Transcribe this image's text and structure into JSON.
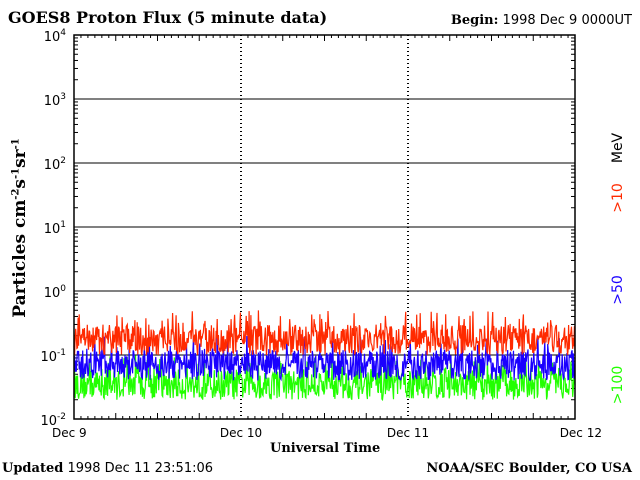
{
  "chart_data": {
    "type": "line",
    "title": "GOES8 Proton Flux (5 minute data)",
    "begin_label": "Begin:",
    "begin_value": "1998 Dec 9 0000UT",
    "xlabel": "Universal Time",
    "ylabel": "Particles cm",
    "ylabel_exp1": "-2",
    "ylabel_mid1": "s",
    "ylabel_exp2": "-1",
    "ylabel_mid2": "sr",
    "ylabel_exp3": "-1",
    "y_scale": "log",
    "ylim": [
      0.01,
      10000
    ],
    "y_ticks": [
      {
        "base": "10",
        "exp": "-2",
        "value": 0.01
      },
      {
        "base": "10",
        "exp": "-1",
        "value": 0.1
      },
      {
        "base": "10",
        "exp": "0",
        "value": 1
      },
      {
        "base": "10",
        "exp": "1",
        "value": 10
      },
      {
        "base": "10",
        "exp": "2",
        "value": 100
      },
      {
        "base": "10",
        "exp": "3",
        "value": 1000
      },
      {
        "base": "10",
        "exp": "4",
        "value": 10000
      }
    ],
    "x_range": [
      "1998-12-09",
      "1998-12-12"
    ],
    "x_ticks": [
      {
        "label": "Dec 9",
        "day": "1998-12-09"
      },
      {
        "label": "Dec 10",
        "day": "1998-12-10"
      },
      {
        "label": "Dec 11",
        "day": "1998-12-11"
      },
      {
        "label": "Dec 12",
        "day": "1998-12-12"
      }
    ],
    "grid": true,
    "energy_unit": "MeV",
    "series": [
      {
        "name": ">10",
        "color": "#ff2a00",
        "typical_range": [
          0.1,
          0.3
        ],
        "peak": 0.5
      },
      {
        "name": ">50",
        "color": "#1a00ff",
        "typical_range": [
          0.04,
          0.12
        ],
        "peak": 0.2
      },
      {
        "name": ">100",
        "color": "#22ff00",
        "typical_range": [
          0.02,
          0.06
        ],
        "peak": 0.1
      }
    ]
  },
  "footer": {
    "updated_label": "Updated",
    "updated_value": "1998 Dec 11 23:51:06",
    "credit": "NOAA/SEC Boulder, CO USA"
  }
}
